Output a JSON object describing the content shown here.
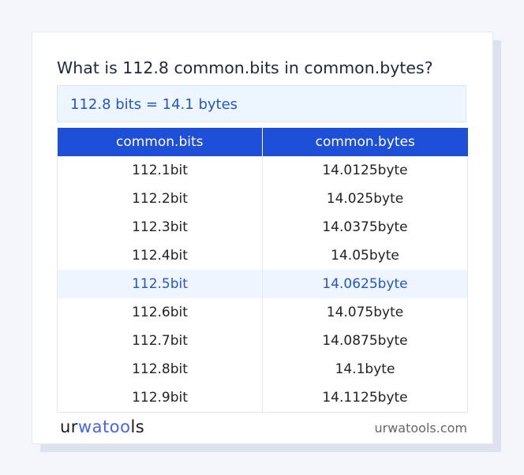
{
  "title": "What is 112.8 common.bits in common.bytes?",
  "result": "112.8 bits = 14.1 bytes",
  "table": {
    "headers": [
      "common.bits",
      "common.bytes"
    ],
    "rows": [
      [
        "112.1bit",
        "14.0125byte"
      ],
      [
        "112.2bit",
        "14.025byte"
      ],
      [
        "112.3bit",
        "14.0375byte"
      ],
      [
        "112.4bit",
        "14.05byte"
      ],
      [
        "112.5bit",
        "14.0625byte"
      ],
      [
        "112.6bit",
        "14.075byte"
      ],
      [
        "112.7bit",
        "14.0875byte"
      ],
      [
        "112.8bit",
        "14.1byte"
      ],
      [
        "112.9bit",
        "14.1125byte"
      ]
    ],
    "highlighted_row": 4
  },
  "footer": {
    "logo": {
      "part1": "ur",
      "part2": "watoo",
      "part3": "ls"
    },
    "site": "urwatools.com"
  },
  "colors": {
    "accent": "#1d4fd8",
    "highlight_text": "#2456c8",
    "highlight_bg": "#eef5ff"
  }
}
